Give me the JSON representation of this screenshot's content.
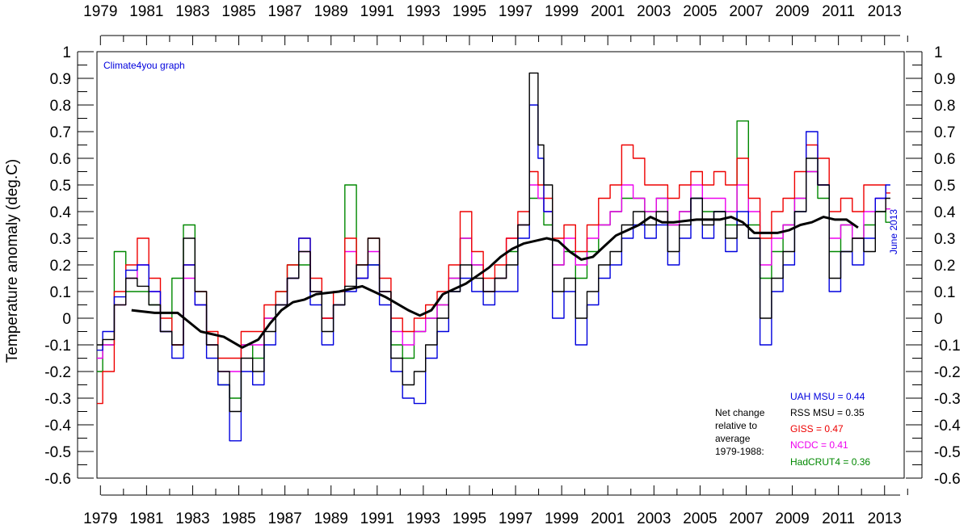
{
  "chart_data": {
    "type": "line",
    "ylabel": "Temperature anomaly (deg.C)",
    "ylim": [
      -0.6,
      1.0
    ],
    "yticks": [
      1,
      0.9,
      0.8,
      0.7,
      0.6,
      0.5,
      0.4,
      0.3,
      0.2,
      0.1,
      0,
      -0.1,
      -0.2,
      -0.3,
      -0.4,
      -0.5,
      -0.6
    ],
    "xlim": [
      1979,
      2014
    ],
    "xtick_labels": [
      "1979",
      "1981",
      "1983",
      "1985",
      "1987",
      "1989",
      "1991",
      "1993",
      "1995",
      "1997",
      "1999",
      "2001",
      "2003",
      "2005",
      "2007",
      "2009",
      "2011",
      "2013"
    ],
    "watermark": "Climate4you graph",
    "date_note": "June 2013",
    "net_change_note": [
      "Net change",
      "relative to",
      "average",
      "1979-1988:"
    ],
    "grid": false,
    "series": [
      {
        "name": "UAH MSU = 0.44",
        "color": "#0000dd",
        "x": [
          1979.0,
          1979.5,
          1980.0,
          1980.5,
          1981.0,
          1981.5,
          1982.0,
          1982.5,
          1983.0,
          1983.5,
          1984.0,
          1984.5,
          1985.0,
          1985.5,
          1986.0,
          1986.5,
          1987.0,
          1987.5,
          1988.0,
          1988.5,
          1989.0,
          1989.5,
          1990.0,
          1990.5,
          1991.0,
          1991.5,
          1992.0,
          1992.5,
          1993.0,
          1993.5,
          1994.0,
          1994.5,
          1995.0,
          1995.5,
          1996.0,
          1996.5,
          1997.0,
          1997.5,
          1998.0,
          1998.25,
          1998.5,
          1999.0,
          1999.5,
          2000.0,
          2000.5,
          2001.0,
          2001.5,
          2002.0,
          2002.5,
          2003.0,
          2003.5,
          2004.0,
          2004.5,
          2005.0,
          2005.5,
          2006.0,
          2006.5,
          2007.0,
          2007.5,
          2008.0,
          2008.5,
          2009.0,
          2009.5,
          2010.0,
          2010.5,
          2011.0,
          2011.5,
          2012.0,
          2012.5,
          2013.0,
          2013.4
        ],
        "y": [
          -0.12,
          -0.05,
          0.08,
          0.18,
          0.2,
          0.1,
          -0.05,
          -0.15,
          0.2,
          0.05,
          -0.15,
          -0.25,
          -0.46,
          -0.2,
          -0.25,
          -0.1,
          0.05,
          0.15,
          0.3,
          0.05,
          -0.1,
          0.05,
          0.1,
          0.15,
          0.2,
          0.05,
          -0.2,
          -0.3,
          -0.32,
          -0.15,
          -0.05,
          0.1,
          0.15,
          0.1,
          0.05,
          0.1,
          0.1,
          0.3,
          0.8,
          0.6,
          0.4,
          0.0,
          0.1,
          -0.1,
          0.05,
          0.15,
          0.2,
          0.3,
          0.35,
          0.3,
          0.35,
          0.2,
          0.3,
          0.45,
          0.3,
          0.4,
          0.25,
          0.4,
          0.3,
          -0.1,
          0.1,
          0.2,
          0.4,
          0.7,
          0.5,
          0.1,
          0.25,
          0.2,
          0.3,
          0.45,
          0.5
        ]
      },
      {
        "name": "RSS MSU = 0.35",
        "color": "#000000",
        "x": [
          1979.0,
          1979.5,
          1980.0,
          1980.5,
          1981.0,
          1981.5,
          1982.0,
          1982.5,
          1983.0,
          1983.5,
          1984.0,
          1984.5,
          1985.0,
          1985.5,
          1986.0,
          1986.5,
          1987.0,
          1987.5,
          1988.0,
          1988.5,
          1989.0,
          1989.5,
          1990.0,
          1990.5,
          1991.0,
          1991.5,
          1992.0,
          1992.5,
          1993.0,
          1993.5,
          1994.0,
          1994.5,
          1995.0,
          1995.5,
          1996.0,
          1996.5,
          1997.0,
          1997.5,
          1998.0,
          1998.25,
          1998.5,
          1999.0,
          1999.5,
          2000.0,
          2000.5,
          2001.0,
          2001.5,
          2002.0,
          2002.5,
          2003.0,
          2003.5,
          2004.0,
          2004.5,
          2005.0,
          2005.5,
          2006.0,
          2006.5,
          2007.0,
          2007.5,
          2008.0,
          2008.5,
          2009.0,
          2009.5,
          2010.0,
          2010.5,
          2011.0,
          2011.5,
          2012.0,
          2012.5,
          2013.0,
          2013.4
        ],
        "y": [
          -0.1,
          -0.08,
          0.05,
          0.15,
          0.12,
          0.05,
          -0.05,
          -0.1,
          0.3,
          0.1,
          -0.1,
          -0.2,
          -0.35,
          -0.15,
          -0.2,
          -0.05,
          0.05,
          0.15,
          0.25,
          0.1,
          -0.05,
          0.05,
          0.12,
          0.2,
          0.3,
          0.1,
          -0.15,
          -0.25,
          -0.2,
          -0.1,
          0.0,
          0.1,
          0.2,
          0.15,
          0.1,
          0.15,
          0.2,
          0.35,
          0.92,
          0.65,
          0.5,
          0.1,
          0.15,
          0.0,
          0.1,
          0.2,
          0.25,
          0.35,
          0.4,
          0.35,
          0.4,
          0.25,
          0.35,
          0.45,
          0.35,
          0.4,
          0.3,
          0.35,
          0.3,
          0.0,
          0.15,
          0.25,
          0.4,
          0.6,
          0.5,
          0.15,
          0.25,
          0.3,
          0.25,
          0.4,
          0.45
        ]
      },
      {
        "name": "GISS = 0.47",
        "color": "#ee0000",
        "x": [
          1979.0,
          1979.5,
          1980.0,
          1980.5,
          1981.0,
          1981.5,
          1982.0,
          1982.5,
          1983.0,
          1983.5,
          1984.0,
          1984.5,
          1985.0,
          1985.5,
          1986.0,
          1986.5,
          1987.0,
          1987.5,
          1988.0,
          1988.5,
          1989.0,
          1989.5,
          1990.0,
          1990.5,
          1991.0,
          1991.5,
          1992.0,
          1992.5,
          1993.0,
          1993.5,
          1994.0,
          1994.5,
          1995.0,
          1995.5,
          1996.0,
          1996.5,
          1997.0,
          1997.5,
          1998.0,
          1998.25,
          1998.5,
          1999.0,
          1999.5,
          2000.0,
          2000.5,
          2001.0,
          2001.5,
          2002.0,
          2002.5,
          2003.0,
          2003.5,
          2004.0,
          2004.5,
          2005.0,
          2005.5,
          2006.0,
          2006.5,
          2007.0,
          2007.5,
          2008.0,
          2008.5,
          2009.0,
          2009.5,
          2010.0,
          2010.5,
          2011.0,
          2011.5,
          2012.0,
          2012.5,
          2013.0,
          2013.4
        ],
        "y": [
          -0.32,
          -0.2,
          0.1,
          0.2,
          0.3,
          0.15,
          0.0,
          -0.1,
          0.2,
          0.1,
          -0.05,
          -0.15,
          -0.15,
          -0.05,
          -0.05,
          0.05,
          0.1,
          0.2,
          0.3,
          0.15,
          0.0,
          0.1,
          0.3,
          0.2,
          0.3,
          0.15,
          0.0,
          -0.05,
          0.0,
          0.05,
          0.1,
          0.2,
          0.4,
          0.25,
          0.15,
          0.2,
          0.3,
          0.4,
          0.55,
          0.5,
          0.45,
          0.3,
          0.35,
          0.25,
          0.35,
          0.45,
          0.5,
          0.65,
          0.6,
          0.5,
          0.5,
          0.45,
          0.5,
          0.55,
          0.5,
          0.55,
          0.5,
          0.6,
          0.45,
          0.3,
          0.4,
          0.45,
          0.55,
          0.65,
          0.6,
          0.4,
          0.45,
          0.4,
          0.5,
          0.5,
          0.47
        ]
      },
      {
        "name": "NCDC = 0.41",
        "color": "#ee00ee",
        "x": [
          1979.0,
          1979.5,
          1980.0,
          1980.5,
          1981.0,
          1981.5,
          1982.0,
          1982.5,
          1983.0,
          1983.5,
          1984.0,
          1984.5,
          1985.0,
          1985.5,
          1986.0,
          1986.5,
          1987.0,
          1987.5,
          1988.0,
          1988.5,
          1989.0,
          1989.5,
          1990.0,
          1990.5,
          1991.0,
          1991.5,
          1992.0,
          1992.5,
          1993.0,
          1993.5,
          1994.0,
          1994.5,
          1995.0,
          1995.5,
          1996.0,
          1996.5,
          1997.0,
          1997.5,
          1998.0,
          1998.25,
          1998.5,
          1999.0,
          1999.5,
          2000.0,
          2000.5,
          2001.0,
          2001.5,
          2002.0,
          2002.5,
          2003.0,
          2003.5,
          2004.0,
          2004.5,
          2005.0,
          2005.5,
          2006.0,
          2006.5,
          2007.0,
          2007.5,
          2008.0,
          2008.5,
          2009.0,
          2009.5,
          2010.0,
          2010.5,
          2011.0,
          2011.5,
          2012.0,
          2012.5,
          2013.0,
          2013.4
        ],
        "y": [
          -0.15,
          -0.1,
          0.05,
          0.15,
          0.2,
          0.1,
          -0.05,
          -0.1,
          0.15,
          0.05,
          -0.1,
          -0.2,
          -0.2,
          -0.1,
          -0.1,
          0.0,
          0.05,
          0.15,
          0.25,
          0.1,
          0.0,
          0.05,
          0.25,
          0.15,
          0.25,
          0.1,
          -0.05,
          -0.1,
          -0.05,
          0.0,
          0.05,
          0.15,
          0.3,
          0.2,
          0.1,
          0.15,
          0.3,
          0.35,
          0.5,
          0.45,
          0.4,
          0.2,
          0.3,
          0.2,
          0.3,
          0.35,
          0.4,
          0.5,
          0.45,
          0.4,
          0.45,
          0.35,
          0.4,
          0.5,
          0.45,
          0.45,
          0.4,
          0.5,
          0.4,
          0.2,
          0.3,
          0.35,
          0.45,
          0.55,
          0.5,
          0.3,
          0.35,
          0.3,
          0.4,
          0.45,
          0.41
        ]
      },
      {
        "name": "HadCRUT4 = 0.36",
        "color": "#008800",
        "x": [
          1979.0,
          1979.5,
          1980.0,
          1980.5,
          1981.0,
          1981.5,
          1982.0,
          1982.5,
          1983.0,
          1983.5,
          1984.0,
          1984.5,
          1985.0,
          1985.5,
          1986.0,
          1986.5,
          1987.0,
          1987.5,
          1988.0,
          1988.5,
          1989.0,
          1989.5,
          1990.0,
          1990.5,
          1991.0,
          1991.5,
          1992.0,
          1992.5,
          1993.0,
          1993.5,
          1994.0,
          1994.5,
          1995.0,
          1995.5,
          1996.0,
          1996.5,
          1997.0,
          1997.5,
          1998.0,
          1998.25,
          1998.5,
          1999.0,
          1999.5,
          2000.0,
          2000.5,
          2001.0,
          2001.5,
          2002.0,
          2002.5,
          2003.0,
          2003.5,
          2004.0,
          2004.5,
          2005.0,
          2005.5,
          2006.0,
          2006.5,
          2007.0,
          2007.5,
          2008.0,
          2008.5,
          2009.0,
          2009.5,
          2010.0,
          2010.5,
          2011.0,
          2011.5,
          2012.0,
          2012.5,
          2013.0,
          2013.4
        ],
        "y": [
          -0.2,
          -0.1,
          0.25,
          0.1,
          0.1,
          0.05,
          -0.05,
          0.15,
          0.35,
          0.05,
          -0.1,
          -0.25,
          -0.3,
          -0.1,
          -0.15,
          0.0,
          0.1,
          0.2,
          0.2,
          0.1,
          0.0,
          0.05,
          0.5,
          0.15,
          0.2,
          0.1,
          -0.1,
          -0.15,
          -0.05,
          0.0,
          0.05,
          0.15,
          0.3,
          0.2,
          0.1,
          0.15,
          0.25,
          0.35,
          0.45,
          0.45,
          0.35,
          0.2,
          0.25,
          0.15,
          0.25,
          0.35,
          0.4,
          0.45,
          0.45,
          0.4,
          0.45,
          0.35,
          0.4,
          0.45,
          0.4,
          0.4,
          0.35,
          0.74,
          0.35,
          0.15,
          0.25,
          0.35,
          0.45,
          0.55,
          0.45,
          0.25,
          0.35,
          0.3,
          0.35,
          0.4,
          0.36
        ]
      },
      {
        "name": "running mean",
        "color": "#000000",
        "x": [
          1980.5,
          1981.5,
          1982.5,
          1983.5,
          1984.5,
          1985.3,
          1986.0,
          1986.5,
          1987.0,
          1987.5,
          1988.0,
          1988.5,
          1989.5,
          1990.5,
          1991.5,
          1992.5,
          1993.0,
          1993.5,
          1994.0,
          1994.5,
          1995.0,
          1995.5,
          1996.0,
          1996.5,
          1997.0,
          1997.5,
          1998.0,
          1998.5,
          1999.0,
          1999.5,
          2000.0,
          2000.5,
          2001.0,
          2001.5,
          2002.0,
          2002.5,
          2003.0,
          2003.5,
          2004.0,
          2005.0,
          2006.0,
          2006.5,
          2007.0,
          2007.5,
          2008.0,
          2008.5,
          2009.0,
          2009.5,
          2010.0,
          2010.5,
          2011.0,
          2011.5,
          2012.0
        ],
        "y": [
          0.03,
          0.02,
          0.02,
          -0.05,
          -0.07,
          -0.11,
          -0.08,
          -0.02,
          0.03,
          0.06,
          0.07,
          0.09,
          0.1,
          0.12,
          0.08,
          0.03,
          0.01,
          0.03,
          0.09,
          0.11,
          0.13,
          0.16,
          0.19,
          0.23,
          0.26,
          0.28,
          0.29,
          0.3,
          0.29,
          0.25,
          0.22,
          0.23,
          0.27,
          0.31,
          0.33,
          0.35,
          0.38,
          0.36,
          0.36,
          0.37,
          0.37,
          0.38,
          0.36,
          0.32,
          0.32,
          0.32,
          0.33,
          0.35,
          0.36,
          0.38,
          0.37,
          0.37,
          0.34
        ]
      }
    ]
  }
}
